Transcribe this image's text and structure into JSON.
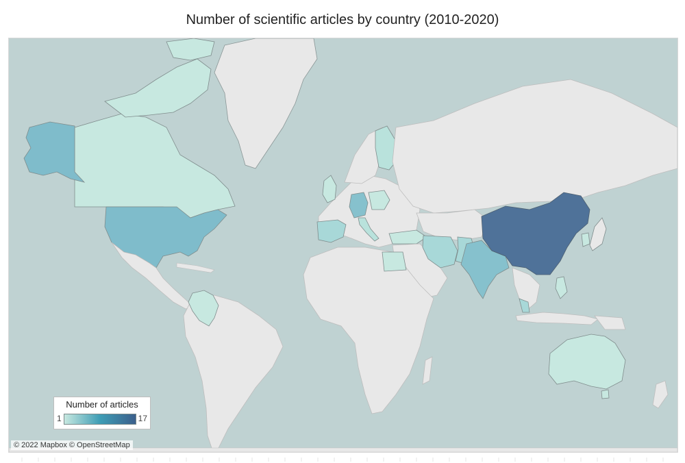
{
  "title": "Number of scientific articles by country (2010-2020)",
  "legend": {
    "title": "Number of articles",
    "min_label": "1",
    "max_label": "17",
    "scale_min": 1,
    "scale_max": 17,
    "color_low": "#c7e8e0",
    "color_mid": "#3e9db5",
    "color_high": "#3c5f8c"
  },
  "attribution": "© 2022 Mapbox © OpenStreetMap",
  "colors": {
    "ocean": "#bfd2d2",
    "land_no_data": "#e8e8e8",
    "border": "#bdbdbd",
    "coast": "#7f8c8c"
  },
  "countries": [
    {
      "name": "China",
      "level": "very-high",
      "color": "#4f7299"
    },
    {
      "name": "United States",
      "level": "medium",
      "color": "#7fbccb"
    },
    {
      "name": "India",
      "level": "medium",
      "color": "#86c1cd"
    },
    {
      "name": "Germany",
      "level": "medium",
      "color": "#86c1cd"
    },
    {
      "name": "Canada",
      "level": "low",
      "color": "#c7e8e0"
    },
    {
      "name": "Australia",
      "level": "low",
      "color": "#c7e8e0"
    },
    {
      "name": "Iran",
      "level": "low",
      "color": "#a8d8d8"
    },
    {
      "name": "Spain",
      "level": "low",
      "color": "#a8d8d8"
    },
    {
      "name": "Finland",
      "level": "low",
      "color": "#b9e2dc"
    },
    {
      "name": "Egypt",
      "level": "low",
      "color": "#c7e8e0"
    },
    {
      "name": "Colombia",
      "level": "low",
      "color": "#c7e8e0"
    }
  ]
}
